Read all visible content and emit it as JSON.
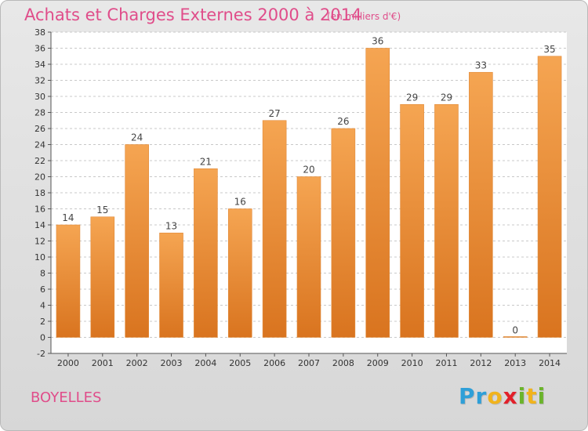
{
  "title": "Achats et Charges Externes 2000 à 2014",
  "subtitle": "(en milliers d'€)",
  "location": "BOYELLES",
  "logo": {
    "letters": [
      "P",
      "r",
      "o",
      "x",
      "i",
      "t",
      "i"
    ],
    "colors": [
      "#2e9fd8",
      "#2e9fd8",
      "#f1b31c",
      "#e2202a",
      "#6bb42b",
      "#f1b31c",
      "#6bb42b"
    ]
  },
  "colors": {
    "bar_top": "#f5a552",
    "bar_bottom": "#d9741f",
    "title": "#e04d8a",
    "grid": "#c8c8c8"
  },
  "chart_data": {
    "type": "bar",
    "categories": [
      "2000",
      "2001",
      "2002",
      "2003",
      "2004",
      "2005",
      "2006",
      "2007",
      "2008",
      "2009",
      "2010",
      "2011",
      "2012",
      "2013",
      "2014"
    ],
    "values": [
      14,
      15,
      24,
      13,
      21,
      16,
      27,
      20,
      26,
      36,
      29,
      29,
      33,
      0,
      35
    ],
    "ylim": [
      -2,
      38
    ],
    "yticks": [
      -2,
      0,
      2,
      4,
      6,
      8,
      10,
      12,
      14,
      16,
      18,
      20,
      22,
      24,
      26,
      28,
      30,
      32,
      34,
      36,
      38
    ],
    "grid": true,
    "xlabel": "",
    "ylabel": ""
  }
}
